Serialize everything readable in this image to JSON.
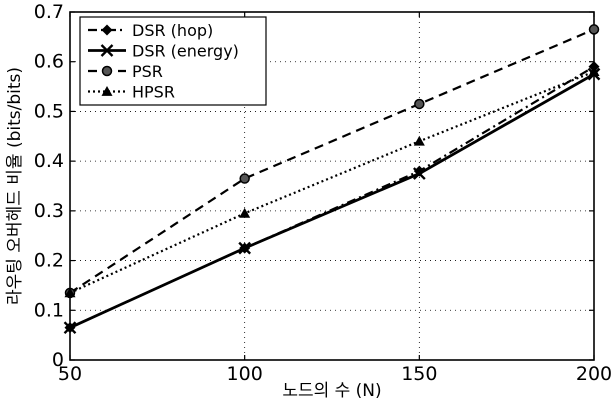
{
  "chart_data": {
    "type": "line",
    "xlabel": "노드의 수 (N)",
    "ylabel": "라우팅 오버헤드 비율 (bits/bits)",
    "x": [
      50,
      100,
      150,
      200
    ],
    "xlim": [
      50,
      200
    ],
    "ylim": [
      0,
      0.7
    ],
    "xticks": [
      "50",
      "100",
      "150",
      "200"
    ],
    "yticks": [
      "0",
      "0.1",
      "0.2",
      "0.3",
      "0.4",
      "0.5",
      "0.6",
      "0.7"
    ],
    "grid": true,
    "legend_position": "top-left",
    "series": [
      {
        "name": "DSR (hop)",
        "values": [
          0.065,
          0.225,
          0.38,
          0.59
        ],
        "line_style": "dash-dot",
        "marker": "diamond",
        "color": "#000000"
      },
      {
        "name": "DSR (energy)",
        "values": [
          0.065,
          0.225,
          0.375,
          0.575
        ],
        "line_style": "solid",
        "marker": "x",
        "color": "#000000"
      },
      {
        "name": "PSR",
        "values": [
          0.135,
          0.365,
          0.515,
          0.665
        ],
        "line_style": "dashed",
        "marker": "circle",
        "color": "#000000"
      },
      {
        "name": "HPSR",
        "values": [
          0.135,
          0.295,
          0.44,
          0.58
        ],
        "line_style": "dotted",
        "marker": "triangle",
        "color": "#000000"
      }
    ]
  }
}
